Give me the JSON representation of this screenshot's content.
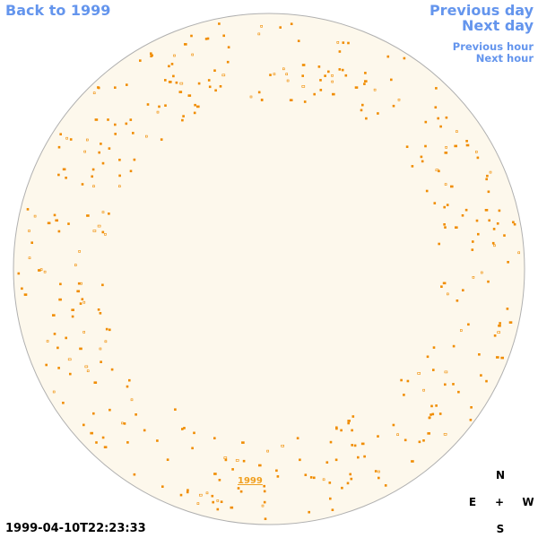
{
  "nav": {
    "back": "Back to 1999",
    "previous_day": "Previous day",
    "next_day": "Next day",
    "previous_hour": "Previous hour",
    "next_hour": "Next hour"
  },
  "timestamp": "1999-04-10T22:23:33",
  "disk_label": "1999",
  "compass": {
    "north": "N",
    "east": "E",
    "center": "+",
    "west": "W",
    "south": "S"
  }
}
